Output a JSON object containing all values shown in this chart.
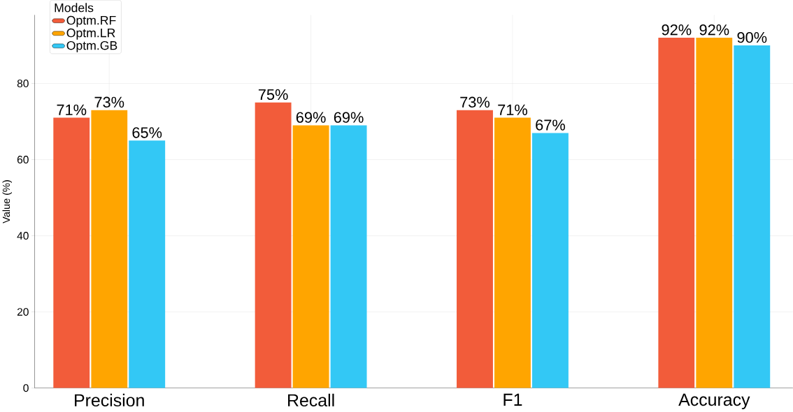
{
  "chart_data": {
    "type": "bar",
    "ylabel": "Value (%)",
    "legend_title": "Models",
    "categories": [
      "Precision",
      "Recall",
      "F1",
      "Accuracy"
    ],
    "series": [
      {
        "name": "Optm.RF",
        "color": "#f25c3a",
        "values": [
          71,
          75,
          73,
          92
        ],
        "value_labels": [
          "71%",
          "75%",
          "73%",
          "92%"
        ]
      },
      {
        "name": "Optm.LR",
        "color": "#ffa500",
        "values": [
          73,
          69,
          71,
          92
        ],
        "value_labels": [
          "73%",
          "69%",
          "71%",
          "92%"
        ]
      },
      {
        "name": "Optm.GB",
        "color": "#33c8f5",
        "values": [
          65,
          69,
          67,
          90
        ],
        "value_labels": [
          "65%",
          "69%",
          "67%",
          "90%"
        ]
      }
    ],
    "ylim": [
      0,
      98
    ],
    "yticks": [
      0,
      20,
      40,
      60,
      80
    ],
    "grid": true,
    "legend": "top left"
  }
}
